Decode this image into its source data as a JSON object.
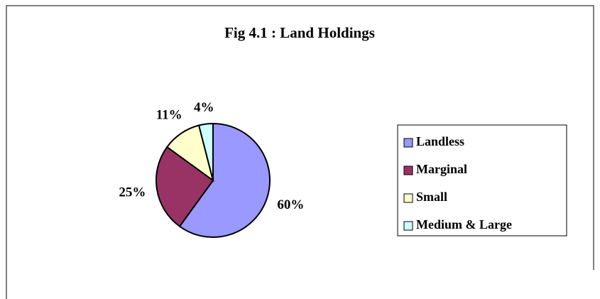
{
  "chart_data": {
    "type": "pie",
    "title": "Fig 4.1 : Land Holdings",
    "categories": [
      "Landless",
      "Marginal",
      "Small",
      "Medium & Large"
    ],
    "values": [
      60,
      25,
      11,
      4
    ],
    "value_labels": [
      "60%",
      "25%",
      "11%",
      "4%"
    ],
    "colors": [
      "#9999ff",
      "#993366",
      "#ffffcc",
      "#ccffff"
    ],
    "legend": "right"
  }
}
